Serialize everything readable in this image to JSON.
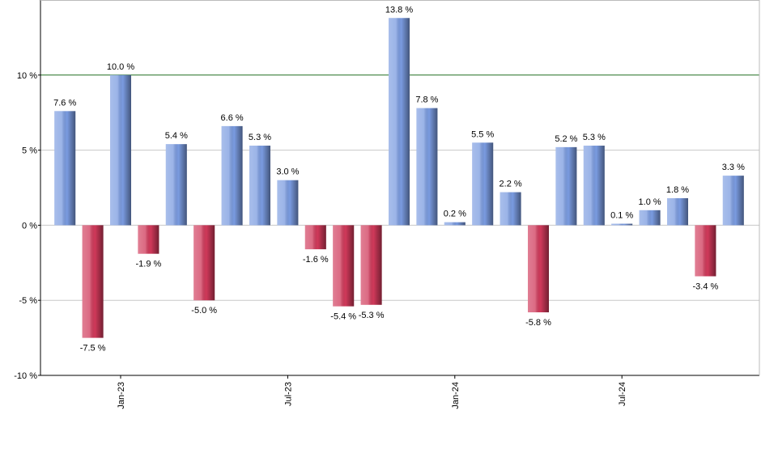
{
  "chart_data": {
    "type": "bar",
    "categories": [
      null,
      null,
      "Jan-23",
      null,
      null,
      null,
      null,
      null,
      "Jul-23",
      null,
      null,
      null,
      null,
      null,
      "Jan-24",
      null,
      null,
      null,
      null,
      null,
      "Jul-24",
      null,
      null,
      null,
      null
    ],
    "values": [
      7.6,
      -7.5,
      10.0,
      -1.9,
      5.4,
      -5.0,
      6.6,
      5.3,
      3.0,
      -1.6,
      -5.4,
      -5.3,
      13.8,
      7.8,
      0.2,
      5.5,
      2.2,
      -5.8,
      5.2,
      5.3,
      0.1,
      1.0,
      1.8,
      -3.4,
      3.3
    ],
    "value_labels": [
      "7.6 %",
      "-7.5 %",
      "10.0 %",
      "-1.9 %",
      "5.4 %",
      "-5.0 %",
      "6.6 %",
      "5.3 %",
      "3.0 %",
      "-1.6 %",
      "-5.4 %",
      "-5.3 %",
      "13.8 %",
      "7.8 %",
      "0.2 %",
      "5.5 %",
      "2.2 %",
      "-5.8 %",
      "5.2 %",
      "5.3 %",
      "0.1 %",
      "1.0 %",
      "1.8 %",
      "-3.4 %",
      "3.3 %"
    ],
    "positive_color": "#7a9be0",
    "negative_color": "#d0395a",
    "ylim": [
      -10,
      15
    ],
    "yticks": [
      {
        "value": -10,
        "label": "-10 %"
      },
      {
        "value": -5,
        "label": "-5 %"
      },
      {
        "value": 0,
        "label": "0 %"
      },
      {
        "value": 5,
        "label": "5 %"
      },
      {
        "value": 10,
        "label": "10 %"
      }
    ],
    "grid": true,
    "reference_line": {
      "value": 10,
      "color": "#2e7d2e"
    }
  }
}
